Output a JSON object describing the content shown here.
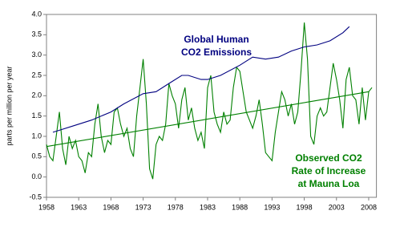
{
  "chart_data": {
    "type": "line",
    "y_label": "parts per million per year",
    "xlim": [
      1958,
      2009.2
    ],
    "ylim": [
      -0.5,
      4.0
    ],
    "xticks": [
      1958,
      1963,
      1968,
      1973,
      1978,
      1983,
      1988,
      1993,
      1998,
      2003,
      2008
    ],
    "yticks": [
      {
        "value": -0.5,
        "label": "-0.5"
      },
      {
        "value": 0,
        "label": "0.0"
      },
      0.5,
      {
        "value": 1,
        "label": "1.0"
      },
      1.5,
      {
        "value": 2,
        "label": "2.0"
      },
      2.5,
      {
        "value": 3,
        "label": "3.0"
      },
      3.5,
      {
        "value": 4,
        "label": "4.0"
      }
    ],
    "series": [
      {
        "color": "#008000",
        "x": [
          1958,
          1958.5,
          1959,
          1959.5,
          1960,
          1960.5,
          1961,
          1961.5,
          1962,
          1962.5,
          1963,
          1963.5,
          1964,
          1964.5,
          1965,
          1965.5,
          1966,
          1966.5,
          1967,
          1967.5,
          1968,
          1968.5,
          1969,
          1969.5,
          1970,
          1970.5,
          1971,
          1971.5,
          1972,
          1972.5,
          1973,
          1973.5,
          1974,
          1974.5,
          1975,
          1975.5,
          1976,
          1976.5,
          1977,
          1977.5,
          1978,
          1978.5,
          1979,
          1979.5,
          1980,
          1980.5,
          1981,
          1981.5,
          1982,
          1982.5,
          1983,
          1983.5,
          1984,
          1984.5,
          1985,
          1985.5,
          1986,
          1986.5,
          1987,
          1987.5,
          1988,
          1988.5,
          1989,
          1989.5,
          1990,
          1990.5,
          1991,
          1991.5,
          1992,
          1992.5,
          1993,
          1993.5,
          1994,
          1994.5,
          1995,
          1995.5,
          1996,
          1996.5,
          1997,
          1997.5,
          1998,
          1998.5,
          1999,
          1999.5,
          2000,
          2000.5,
          2001,
          2001.5,
          2002,
          2002.5,
          2003,
          2003.5,
          2004,
          2004.5,
          2005,
          2005.5,
          2006,
          2006.5,
          2007,
          2007.5,
          2008,
          2008.5
        ],
        "values": [
          0.8,
          0.5,
          0.4,
          1.0,
          1.6,
          0.7,
          0.3,
          1.0,
          0.7,
          0.9,
          0.5,
          0.4,
          0.1,
          0.6,
          0.5,
          1.3,
          1.8,
          1.0,
          0.6,
          0.9,
          0.8,
          1.6,
          1.7,
          1.3,
          1.0,
          1.2,
          0.7,
          0.5,
          1.5,
          2.2,
          2.9,
          1.8,
          0.2,
          -0.05,
          0.8,
          1.0,
          0.9,
          1.3,
          2.3,
          2.0,
          1.8,
          1.2,
          1.9,
          2.2,
          1.4,
          1.7,
          1.2,
          0.9,
          1.1,
          0.7,
          2.2,
          2.5,
          1.6,
          1.3,
          1.1,
          1.6,
          1.3,
          1.4,
          2.2,
          2.7,
          2.6,
          2.1,
          1.6,
          1.4,
          1.2,
          1.5,
          1.9,
          1.3,
          0.6,
          0.5,
          0.4,
          1.1,
          1.6,
          2.1,
          1.9,
          1.5,
          1.8,
          1.3,
          1.6,
          2.6,
          3.8,
          2.9,
          1.0,
          0.8,
          1.5,
          1.7,
          1.5,
          1.6,
          2.2,
          2.8,
          2.4,
          1.9,
          1.2,
          2.4,
          2.7,
          2.0,
          1.9,
          1.3,
          2.2,
          1.4,
          2.1,
          2.2
        ]
      },
      {
        "color": "#008000",
        "x": [
          1958,
          2008
        ],
        "values": [
          0.75,
          2.1
        ]
      },
      {
        "color": "#000080",
        "x": [
          1959,
          1960,
          1962,
          1965,
          1968,
          1970,
          1973,
          1975,
          1977,
          1979,
          1980,
          1982,
          1983,
          1985,
          1988,
          1990,
          1992,
          1994,
          1996,
          1998,
          2000,
          2002,
          2004,
          2005
        ],
        "values": [
          1.1,
          1.15,
          1.25,
          1.4,
          1.6,
          1.8,
          2.05,
          2.1,
          2.3,
          2.5,
          2.5,
          2.4,
          2.4,
          2.5,
          2.75,
          2.95,
          2.9,
          2.95,
          3.1,
          3.2,
          3.25,
          3.35,
          3.55,
          3.7
        ]
      }
    ],
    "annotations": [
      {
        "text": [
          "Global Human",
          "CO2 Emissions"
        ],
        "color": "#000080"
      },
      {
        "text": [
          "Observed CO2",
          "Rate of Increase",
          "at Mauna Loa"
        ],
        "color": "#008000"
      }
    ]
  }
}
